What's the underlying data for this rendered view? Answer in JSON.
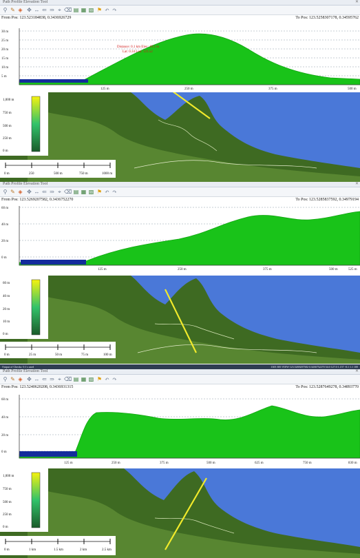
{
  "panels": [
    {
      "window_title": "Path Profile Elevation Tool",
      "from_pos": "From Pos: 123.523184838,  0.3436926729",
      "to_pos": "To Pos: 123.5258307178, 0.34595762",
      "y_ticks": [
        "30 m",
        "25 m",
        "20 m",
        "15 m",
        "10 m",
        "5 m"
      ],
      "x_ticks": [
        "125 m",
        "250 m",
        "375 m",
        "500 m"
      ],
      "annotation_line1": "Distance: 0.1 km  Elev: 19.1 m",
      "annotation_line2": "Lat: 0.34  Lon: 123.52",
      "legend_ticks": [
        "1,000 m",
        "750 m",
        "500 m",
        "250 m",
        "0 m"
      ],
      "scale_labels": [
        "0 m",
        "250",
        "500 m",
        "750 m",
        "1000 m"
      ]
    },
    {
      "window_title": "Path Profile Elevation Tool",
      "from_pos": "From Pos: 123.5269207582,  0.3436752270",
      "to_pos": "To Pos: 123.5285837592, 0.34979194",
      "y_ticks": [
        "60 m",
        "40 m",
        "20 m",
        "0 m"
      ],
      "x_ticks": [
        "125 m",
        "250 m",
        "375 m",
        "500 m",
        "525 m"
      ],
      "legend_ticks": [
        "60 m",
        "40 m",
        "20 m",
        "10 m",
        "0 m"
      ],
      "scale_labels": [
        "0 m",
        "25 m",
        "50 m",
        "75 m",
        "100 m"
      ],
      "status_left": "Output of Checks: 0.1 s used",
      "status_right": "1305 385 VIEW   123.5269207582 0.3436752270   54.0   127.0   1.157 -0.1 1.1 100"
    },
    {
      "window_title": "Path Profile Elevation Tool",
      "from_pos": "From Pos: 123.5240620208, 0.3436931315",
      "to_pos": "To Pos: 123.5287649278, 0.34893770",
      "y_ticks": [
        "60 m",
        "40 m",
        "20 m",
        "0 m"
      ],
      "x_ticks": [
        "125 m",
        "250 m",
        "375 m",
        "500 m",
        "625 m",
        "750 m",
        "830 m"
      ],
      "legend_ticks": [
        "1,000 m",
        "750 m",
        "500 m",
        "250 m",
        "0 m"
      ],
      "scale_labels": [
        "0 m",
        "1 km",
        "1.5 km",
        "2 km",
        "2.5 km"
      ]
    }
  ],
  "colors": {
    "terrain": "#19c319",
    "terrain_dark": "#12a512",
    "water_profile": "#132c9c",
    "sea": "#4a78d8",
    "land_dark": "#3e6a22",
    "land_mid": "#6b9a3c",
    "path_line": "#f1ea2b",
    "grid": "#8e99a8"
  }
}
